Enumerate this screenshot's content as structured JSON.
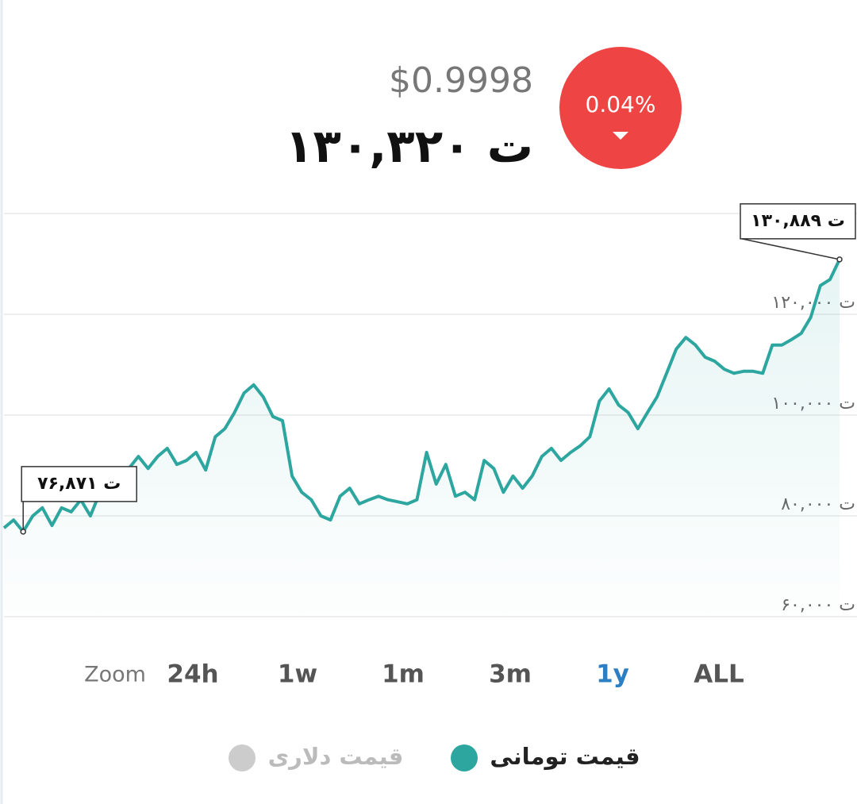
{
  "header": {
    "usd_price": "$0.9998",
    "toman_price": "۱۳۰,۳۲۰ ت",
    "change": "0.04%",
    "change_color": "#ee4444"
  },
  "zoom": {
    "label": "Zoom",
    "options": [
      "24h",
      "1w",
      "1m",
      "3m",
      "1y",
      "ALL"
    ],
    "active": 4
  },
  "chart_data": {
    "type": "line",
    "series": [
      {
        "name": "قیمت تومانی",
        "color": "#2ea6a0",
        "values": [
          77600,
          79200,
          76871,
          80000,
          81600,
          78100,
          81600,
          80800,
          83200,
          80000,
          84700,
          84700,
          87900,
          89400,
          91800,
          89400,
          91800,
          93400,
          90200,
          91000,
          92600,
          89100,
          95700,
          97300,
          100500,
          104400,
          106000,
          103600,
          99700,
          98900,
          87900,
          84700,
          83200,
          80000,
          79200,
          83900,
          85500,
          82400,
          83200,
          83900,
          83200,
          82800,
          82400,
          83200,
          92600,
          86300,
          90200,
          83900,
          84700,
          83200,
          91000,
          89400,
          84700,
          87900,
          85500,
          87900,
          91800,
          93400,
          91000,
          92600,
          93900,
          95700,
          102800,
          105200,
          102000,
          100500,
          97300,
          100500,
          103600,
          108300,
          113100,
          115400,
          113900,
          111500,
          110700,
          109100,
          108300,
          108700,
          108700,
          108300,
          113900,
          113900,
          115000,
          116200,
          119400,
          125700,
          126900,
          130889
        ]
      }
    ],
    "hidden_series": [
      {
        "name": "قیمت دلاری",
        "color": "#cccccc"
      }
    ],
    "ylim": [
      60000,
      140000
    ],
    "yticks": [
      {
        "value": 60000,
        "label": "۶۰,۰۰۰ ت"
      },
      {
        "value": 80000,
        "label": "۸۰,۰۰۰ ت"
      },
      {
        "value": 100000,
        "label": "۱۰۰,۰۰۰ ت"
      },
      {
        "value": 120000,
        "label": "۱۲۰,۰۰۰ ت"
      }
    ],
    "grid": true,
    "annotations": [
      {
        "label": "۷۶,۸۷۱ ت",
        "value": 76871
      },
      {
        "label": "۱۳۰,۸۸۹ ت",
        "value": 130889
      }
    ]
  }
}
